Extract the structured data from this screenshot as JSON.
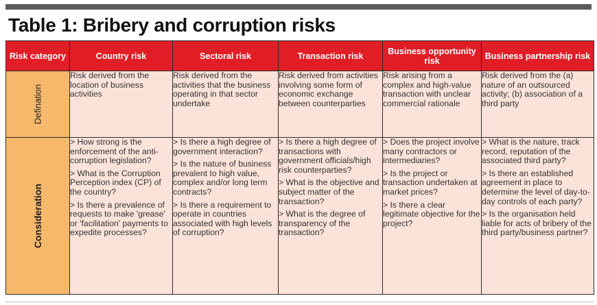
{
  "title": "Table 1: Bribery and corruption risks",
  "headers": {
    "category": "Risk category",
    "country": "Country risk",
    "sectoral": "Sectoral risk",
    "transaction": "Transaction risk",
    "opportunity": "Business opportunity risk",
    "partnership": "Business partnership risk"
  },
  "rows": {
    "definition": {
      "label": "Defination",
      "country": "Risk derived from the location of business activities",
      "sectoral": "Risk derived from the activities that the business operating in that sector undertake",
      "transaction": "Risk derived from activities involving some form of economic exchange between counterparties",
      "opportunity": "Risk arising from a complex and high-value transaction with unclear commercial rationale",
      "partnership": "Risk derived from the (a) nature of an outsourced activity; (b) association of a third party"
    },
    "consideration": {
      "label": "Consideration",
      "country": [
        "> How strong is the enforcement of the anti-corruption legislation?",
        "> What is the Corruption Perception index (CP) of the country?",
        "> Is there a prevalence of requests to make 'grease' or 'facilitation' payments to expedite processes?"
      ],
      "sectoral": [
        "> Is there a high degree of government interaction?",
        "> Is the nature of business prevalent to high value, complex and/or long term contracts?",
        "> Is there a requirement to operate in countries associated with high levels of corruption?"
      ],
      "transaction": [
        "> Is there a high degree of transactions with government officials/high risk counterparties?",
        "> What is the objective and subject matter of the transaction?",
        "> What is the degree of transparency of the transaction?"
      ],
      "opportunity": [
        "> Does the project involve many contractors or intermediaries?",
        "> Is the project or transaction undertaken at market prices?",
        "> Is there a clear legitimate objective for the project?"
      ],
      "partnership": [
        "> What is the nature, track record, reputation of the associated third party?",
        "> Is there an established agreement in place to determine the level of day-to-day controls of each party?",
        "> Is the organisation held liable for acts of bribery of the third party/business partner?"
      ]
    }
  },
  "colors": {
    "header_red": "#e11d26",
    "row_label_orange": "#f6b86a",
    "cell_pink": "#fbe3d9",
    "top_bar_gray": "#595a5c"
  }
}
